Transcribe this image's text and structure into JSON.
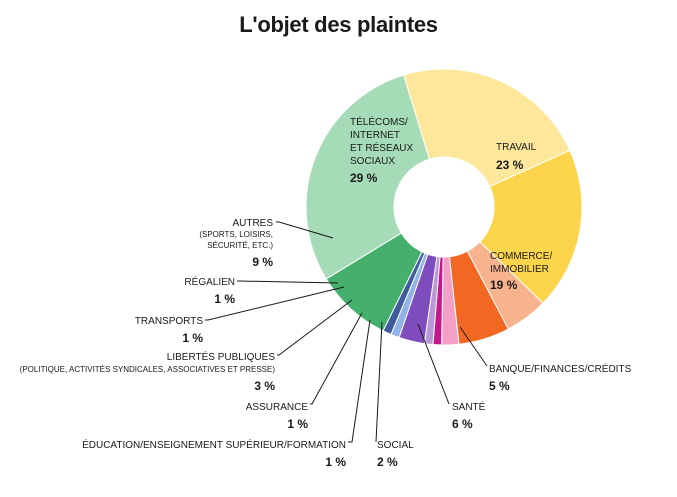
{
  "chart_data": {
    "type": "pie",
    "title": "L'objet des plaintes",
    "slices": [
      {
        "label": "TRAVAIL",
        "value": 23,
        "value_label": "23 %",
        "color": "#fde79a"
      },
      {
        "label": "COMMERCE/ IMMOBILIER",
        "value": 19,
        "value_label": "19 %",
        "color": "#fdd54c"
      },
      {
        "label": "BANQUE/FINANCES/CRÉDITS",
        "value": 5,
        "value_label": "5 %",
        "color": "#f7b38e"
      },
      {
        "label": "SANTÉ",
        "value": 6,
        "value_label": "6 %",
        "color": "#f26722"
      },
      {
        "label": "SOCIAL",
        "value": 2,
        "value_label": "2 %",
        "color": "#f39fc7"
      },
      {
        "label": "ÉDUCATION/ENSEIGNEMENT SUPÉRIEUR/FORMATION",
        "value": 1,
        "value_label": "1 %",
        "color": "#c2188b"
      },
      {
        "label": "ASSURANCE",
        "value": 1,
        "value_label": "1 %",
        "color": "#b999d6"
      },
      {
        "label": "LIBERTÉS PUBLIQUES",
        "sublabel": "(POLITIQUE, ACTIVITÉS SYNDICALES, ASSOCIATIVES ET PRESSE)",
        "value": 3,
        "value_label": "3 %",
        "color": "#7e4cbd"
      },
      {
        "label": "TRANSPORTS",
        "value": 1,
        "value_label": "1 %",
        "color": "#8fb3e6"
      },
      {
        "label": "RÉGALIEN",
        "value": 1,
        "value_label": "1 %",
        "color": "#3f5d9e"
      },
      {
        "label": "AUTRES",
        "sublabel": "(SPORTS, LOISIRS, SÉCURITÉ, ETC.)",
        "value": 9,
        "value_label": "9 %",
        "color": "#45b06c"
      },
      {
        "label": "TÉLÉCOMS/ INTERNET ET RÉSEAUX SOCIAUX",
        "value": 29,
        "value_label": "29 %",
        "color": "#a6dbb8"
      }
    ]
  }
}
